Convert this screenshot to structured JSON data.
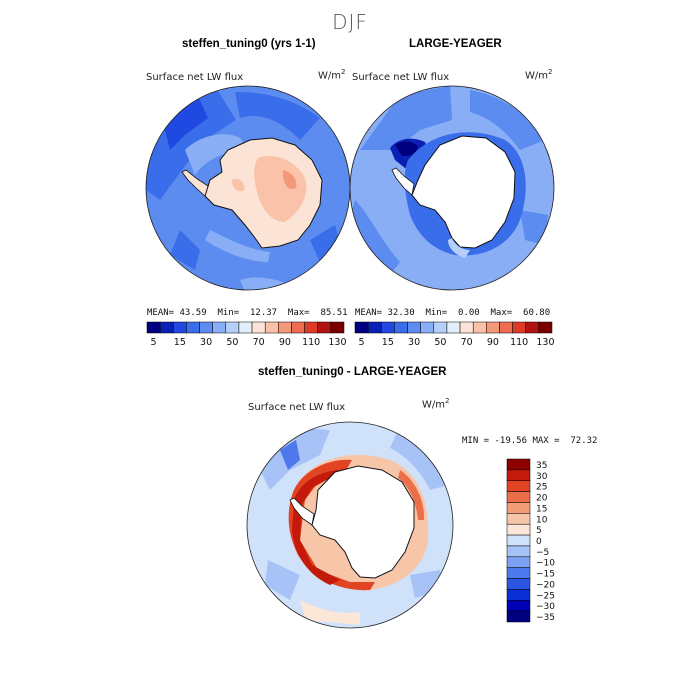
{
  "header": {
    "title": "DJF"
  },
  "colors": {
    "land_white": "#ffffff",
    "coast": "#111111",
    "top_scale": [
      "#00007f",
      "#0a1fb4",
      "#1f49e0",
      "#3a6de9",
      "#5d8cf0",
      "#89aef5",
      "#b5cff8",
      "#e4eefb",
      "#fbe3d6",
      "#f9c2a9",
      "#f4987a",
      "#ee6d50",
      "#de3a25",
      "#b31212",
      "#7a0000"
    ],
    "diff_scale": [
      "#000080",
      "#0000b4",
      "#0a2fd6",
      "#2b55e3",
      "#4e79ec",
      "#7da1f2",
      "#a7c2f6",
      "#d0e1fa",
      "#fbe6d8",
      "#f7c6a9",
      "#f29c77",
      "#ec6f4b",
      "#e24423",
      "#c41a0c",
      "#8e0000"
    ]
  },
  "panels": {
    "left": {
      "title": "steffen_tuning0 (yrs 1-1)",
      "variable": "Surface net LW flux",
      "units_base": "W/m",
      "units_exp": "2",
      "stats": {
        "mean_label": "MEAN=",
        "mean": "43.59",
        "min_label": "Min=",
        "min": "12.37",
        "max_label": "Max=",
        "max": "85.51"
      }
    },
    "right": {
      "title": "LARGE-YEAGER",
      "variable": "Surface net LW flux",
      "units_base": "W/m",
      "units_exp": "2",
      "stats": {
        "mean_label": "MEAN=",
        "mean": "32.30",
        "min_label": "Min=",
        "min": "0.00",
        "max_label": "Max=",
        "max": "60.80"
      }
    },
    "diff": {
      "title": "steffen_tuning0 - LARGE-YEAGER",
      "variable": "Surface net LW flux",
      "units_base": "W/m",
      "units_exp": "2",
      "minmax": "MIN = -19.56 MAX =  72.32"
    }
  },
  "chart_data": [
    {
      "type": "heatmap",
      "title": "steffen_tuning0 (yrs 1-1)",
      "variable": "Surface net LW flux",
      "units": "W/m2",
      "projection": "south polar stereographic",
      "colorbar_ticks": [
        "5",
        "15",
        "30",
        "50",
        "70",
        "90",
        "110",
        "130"
      ],
      "colorbar_levels": [
        5,
        10,
        15,
        20,
        30,
        40,
        50,
        60,
        70,
        80,
        90,
        100,
        110,
        120,
        130
      ],
      "mean": 43.59,
      "min": 12.37,
      "max": 85.51
    },
    {
      "type": "heatmap",
      "title": "LARGE-YEAGER",
      "variable": "Surface net LW flux",
      "units": "W/m2",
      "projection": "south polar stereographic",
      "colorbar_ticks": [
        "5",
        "15",
        "30",
        "50",
        "70",
        "90",
        "110",
        "130"
      ],
      "colorbar_levels": [
        5,
        10,
        15,
        20,
        30,
        40,
        50,
        60,
        70,
        80,
        90,
        100,
        110,
        120,
        130
      ],
      "mean": 32.3,
      "min": 0.0,
      "max": 60.8
    },
    {
      "type": "heatmap",
      "title": "steffen_tuning0 - LARGE-YEAGER",
      "variable": "Surface net LW flux",
      "units": "W/m2",
      "projection": "south polar stereographic",
      "colorbar_ticks": [
        "35",
        "30",
        "25",
        "20",
        "15",
        "10",
        "5",
        "0",
        "−5",
        "−10",
        "−15",
        "−20",
        "−25",
        "−30",
        "−35"
      ],
      "min": -19.56,
      "max": 72.32
    }
  ]
}
